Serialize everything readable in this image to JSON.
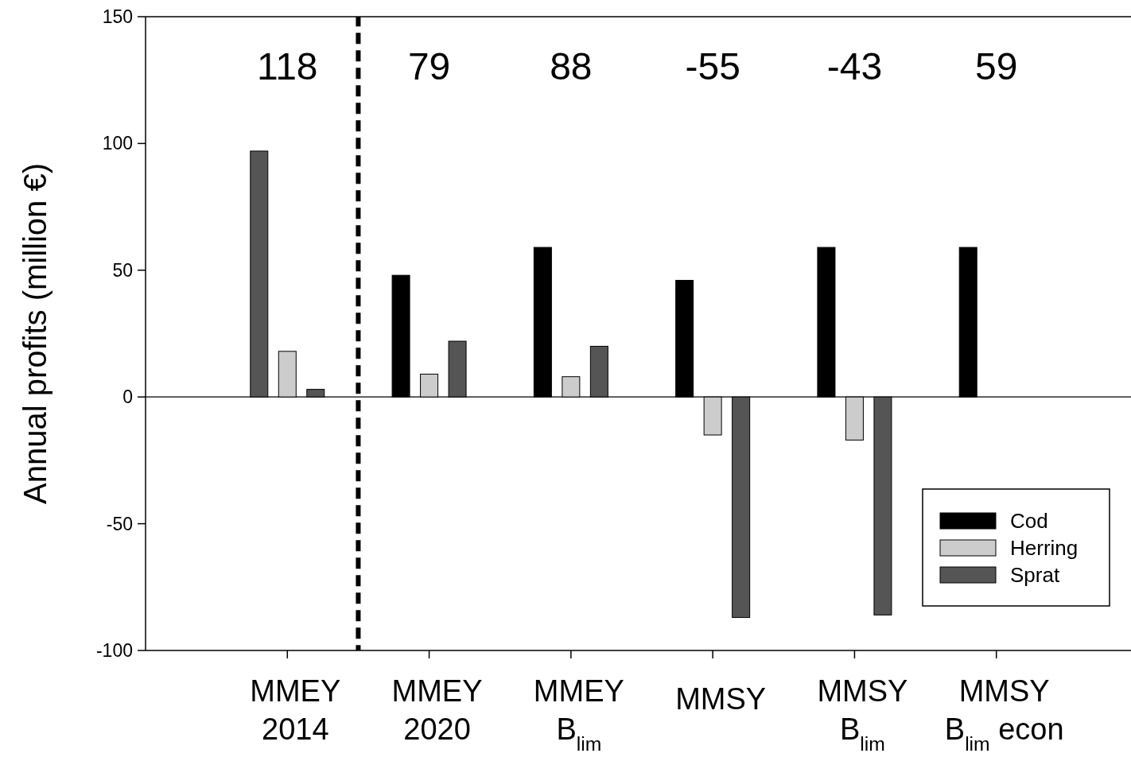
{
  "chart_data": {
    "type": "bar",
    "ylabel": "Annual profits (million €)",
    "categories": [
      "MMEY\n2014",
      "MMEY\n2020",
      "MMEY\nB$_{lim}$",
      "MMSY",
      "MMSY\nB$_{lim}$",
      "MMSY\nB$_{lim}$ econ"
    ],
    "series": [
      {
        "name": "Cod",
        "color": "#000000",
        "colors": [
          "#555555",
          "#000000",
          "#000000",
          "#000000",
          "#000000",
          "#000000"
        ],
        "values": [
          97,
          48,
          59,
          46,
          59,
          59
        ]
      },
      {
        "name": "Herring",
        "color": "#cccccc",
        "values": [
          18,
          9,
          8,
          -15,
          -17,
          null
        ]
      },
      {
        "name": "Sprat",
        "color": "#555555",
        "values": [
          3,
          22,
          20,
          -87,
          -86,
          null
        ]
      }
    ],
    "annotations": [
      "118",
      "79",
      "88",
      "-55",
      "-43",
      "59"
    ],
    "ylim": [
      -100,
      150
    ],
    "yticks": [
      -100,
      -50,
      0,
      50,
      100,
      150
    ],
    "legend": "bottom right"
  }
}
